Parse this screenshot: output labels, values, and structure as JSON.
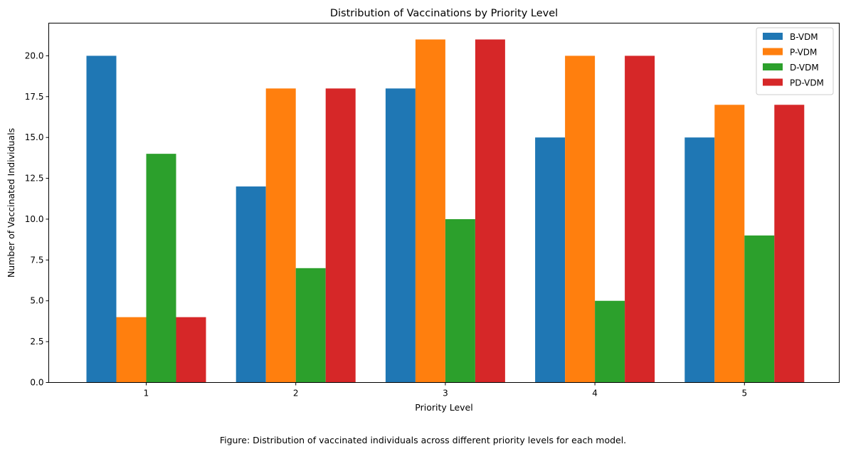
{
  "chart_data": {
    "type": "bar",
    "title": "Distribution of Vaccinations by Priority Level",
    "xlabel": "Priority Level",
    "ylabel": "Number of Vaccinated Individuals",
    "categories": [
      "1",
      "2",
      "3",
      "4",
      "5"
    ],
    "series": [
      {
        "name": "B-VDM",
        "color": "#1f77b4",
        "values": [
          20,
          12,
          18,
          15,
          15
        ]
      },
      {
        "name": "P-VDM",
        "color": "#ff7f0e",
        "values": [
          4,
          18,
          21,
          20,
          17
        ]
      },
      {
        "name": "D-VDM",
        "color": "#2ca02c",
        "values": [
          14,
          7,
          10,
          5,
          9
        ]
      },
      {
        "name": "PD-VDM",
        "color": "#d62728",
        "values": [
          4,
          18,
          21,
          20,
          17
        ]
      }
    ],
    "ylim": [
      0,
      22
    ],
    "yticks": [
      "0.0",
      "2.5",
      "5.0",
      "7.5",
      "10.0",
      "12.5",
      "15.0",
      "17.5",
      "20.0"
    ],
    "grid": false,
    "legend_position": "top-right"
  },
  "caption": "Figure: Distribution of vaccinated individuals across different priority levels for each model."
}
